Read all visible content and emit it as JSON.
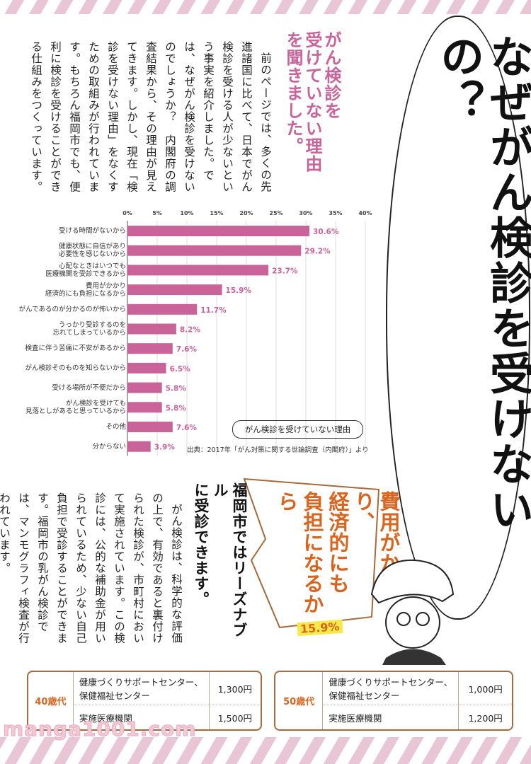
{
  "title": "なぜがん検診を受けないの？",
  "section1": {
    "heading": [
      "がん検診を",
      "受けていない理由",
      "を聞きました。"
    ],
    "body": "前のページでは、多くの先進諸国に比べて、日本でがん検診を受ける人が少ないという事実を紹介しました。では、なぜがん検診を受けないのでしょうか？　内閣府の調査結果から、その理由が見えてきます。しかし、現在「検診を受けない理由」をなくすための取組みが行われています。もちろん福岡市でも、便利に検診を受けることができる仕組みをつくっています。"
  },
  "chart_data": {
    "type": "bar",
    "orientation": "horizontal",
    "title": "がん検診を受けていない理由",
    "source": "出典：2017年「がん対策に関する世論調査（内閣府）」より",
    "xlim": [
      0,
      40
    ],
    "xticks": [
      "0%",
      "5%",
      "10%",
      "15%",
      "20%",
      "25%",
      "30%",
      "35%",
      "40%"
    ],
    "grid": true,
    "bar_color": "#c9639a",
    "categories": [
      "受ける時間がないから",
      "健康状態に自信があり\n必要性を感じないから",
      "心配なときはいつでも\n医療機関を受診できるから",
      "費用がかかり\n経済的にも負担になるから",
      "がんであるのが分かるのが怖いから",
      "うっかり受診するのを\n忘れてしまっているから",
      "検査に伴う苦痛に不安があるから",
      "がん検診そのものを知らないから",
      "受ける場所が不便だから",
      "がん検診を受けても\n見落としがあると思っているから",
      "その他",
      "分からない"
    ],
    "values": [
      30.6,
      29.2,
      23.7,
      15.9,
      11.7,
      8.2,
      7.6,
      6.5,
      5.8,
      5.8,
      7.6,
      3.9
    ],
    "labels": [
      "30.6%",
      "29.2%",
      "23.7%",
      "15.9%",
      "11.7%",
      "8.2%",
      "7.6%",
      "6.5%",
      "5.8%",
      "5.8%",
      "7.6%",
      "3.9%"
    ]
  },
  "callout": {
    "text": [
      "費用がかかり、",
      "経済的にも",
      "負担になるから"
    ],
    "percent": "15.9%",
    "color": "#d8641e"
  },
  "section2": {
    "heading": [
      "福岡市ではリーズナブル",
      "に受診できます。"
    ],
    "body": "がん検診は、科学的な評価の上で、有効であると裏付けられた検診が、市町村において実施されています。この検診には、公的な補助金が用いられているため、少ない自己負担で受診することができます。福岡市の乳がん検診では、マンモグラフィ検査が行われています。"
  },
  "price_tables": [
    {
      "age": "40歳代",
      "rows": [
        {
          "place": "健康づくりサポートセンター、\n保健福祉センター",
          "price": "1,300円"
        },
        {
          "place": "実施医療機関",
          "price": "1,500円"
        }
      ]
    },
    {
      "age": "50歳代",
      "rows": [
        {
          "place": "健康づくりサポートセンター、\n保健福祉センター",
          "price": "1,000円"
        },
        {
          "place": "実施医療機関",
          "price": "1,200円"
        }
      ]
    }
  ],
  "watermark": "manga1001.com"
}
